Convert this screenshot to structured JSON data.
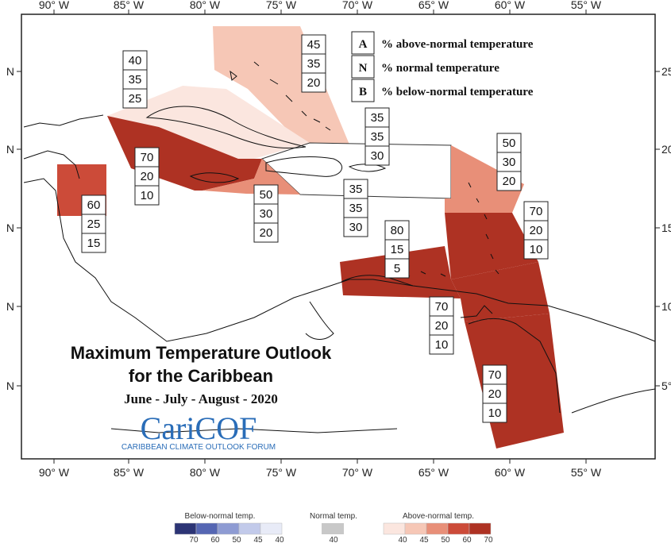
{
  "title": {
    "line1": "Maximum Temperature Outlook",
    "line2": "for the Caribbean",
    "period": "June - July - August - 2020"
  },
  "logo": {
    "name": "CariCOF",
    "subtitle": "CARIBBEAN CLIMATE OUTLOOK FORUM"
  },
  "axes": {
    "lon_top": [
      "90° W",
      "85° W",
      "80° W",
      "75° W",
      "70° W",
      "65° W",
      "60° W",
      "55° W"
    ],
    "lon_bottom": [
      "90° W",
      "85° W",
      "80° W",
      "75° W",
      "70° W",
      "65° W",
      "60° W",
      "55° W"
    ],
    "lat_left": [
      "N",
      "N",
      "N",
      "N",
      "N"
    ],
    "lat_right": [
      "25",
      "20",
      "15",
      "10",
      "5°"
    ]
  },
  "key": [
    {
      "letter": "A",
      "text": "% above-normal temperature"
    },
    {
      "letter": "N",
      "text": "% normal temperature"
    },
    {
      "letter": "B",
      "text": "% below-normal temperature"
    }
  ],
  "regions": [
    {
      "id": "bahamas",
      "values": [
        "45",
        "35",
        "20"
      ],
      "color": "#f6c7b6"
    },
    {
      "id": "cuba",
      "values": [
        "40",
        "35",
        "25"
      ],
      "color": "#fbe6df"
    },
    {
      "id": "turks-caicos",
      "values": [
        "35",
        "35",
        "30"
      ],
      "color": "#ffffff"
    },
    {
      "id": "jamaica-cayman",
      "values": [
        "70",
        "20",
        "10"
      ],
      "color": "#ae3223"
    },
    {
      "id": "jamaica-south",
      "values": [
        "50",
        "30",
        "20"
      ],
      "color": "#e88f78"
    },
    {
      "id": "hispaniola-pr",
      "values": [
        "35",
        "35",
        "30"
      ],
      "color": "#ffffff"
    },
    {
      "id": "belize",
      "values": [
        "60",
        "25",
        "15"
      ],
      "color": "#cc4b39"
    },
    {
      "id": "leeward",
      "values": [
        "50",
        "30",
        "20"
      ],
      "color": "#e88f78"
    },
    {
      "id": "windward",
      "values": [
        "70",
        "20",
        "10"
      ],
      "color": "#ae3223"
    },
    {
      "id": "abc-islands",
      "values": [
        "80",
        "15",
        "5"
      ],
      "color": "#ae3223"
    },
    {
      "id": "trinidad",
      "values": [
        "70",
        "20",
        "10"
      ],
      "color": "#ae3223"
    },
    {
      "id": "guianas",
      "values": [
        "70",
        "20",
        "10"
      ],
      "color": "#ae3223"
    }
  ],
  "scale": {
    "below": {
      "title": "Below-normal temp.",
      "labels": [
        "70",
        "60",
        "50",
        "45",
        "40"
      ],
      "colors": [
        "#2c3475",
        "#5566b3",
        "#8e9bd3",
        "#c2caea",
        "#e8ebf7"
      ]
    },
    "normal": {
      "title": "Normal temp.",
      "labels": [
        "40"
      ],
      "color": "#c8c8c8"
    },
    "above": {
      "title": "Above-normal temp.",
      "labels": [
        "40",
        "45",
        "50",
        "60",
        "70"
      ],
      "colors": [
        "#fbe6df",
        "#f6c7b6",
        "#e88f78",
        "#cc4b39",
        "#ae3223"
      ]
    }
  }
}
